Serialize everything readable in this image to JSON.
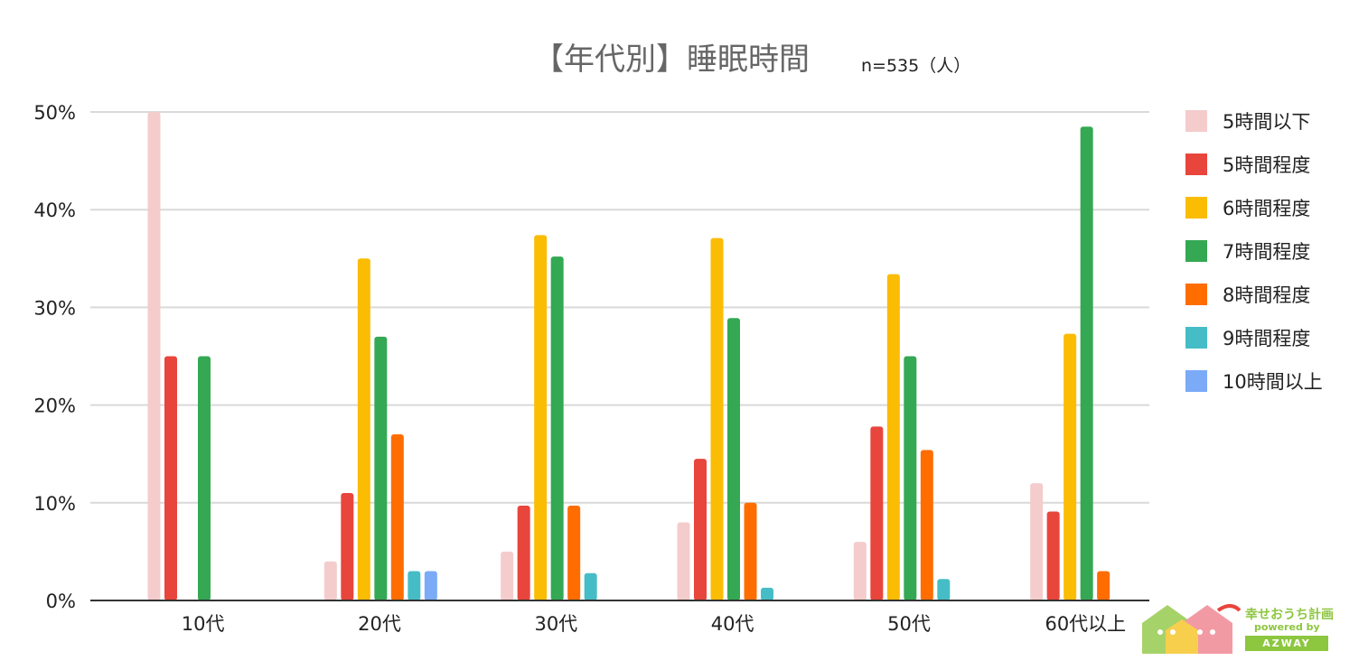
{
  "title": "【年代別】睡眠時間",
  "subtitle": "n=535（人）",
  "logo": {
    "title": "幸せおうち計画",
    "sub": "powered by",
    "brand": "AZWAY"
  },
  "chart_data": {
    "type": "bar",
    "title": "【年代別】睡眠時間",
    "subtitle": "n=535（人）",
    "categories": [
      "10代",
      "20代",
      "30代",
      "40代",
      "50代",
      "60代以上"
    ],
    "ylim": [
      0,
      50
    ],
    "yticks": [
      0,
      10,
      20,
      30,
      40,
      50
    ],
    "ytick_labels": [
      "0%",
      "10%",
      "20%",
      "30%",
      "40%",
      "50%"
    ],
    "grid": true,
    "legend_position": "right",
    "series": [
      {
        "name": "5時間以下",
        "color": "#f4cccc",
        "values": [
          50,
          4,
          5,
          8,
          6,
          12
        ]
      },
      {
        "name": "5時間程度",
        "color": "#e8453c",
        "values": [
          25,
          11,
          9.7,
          14.5,
          17.8,
          9.1
        ]
      },
      {
        "name": "6時間程度",
        "color": "#fbbc04",
        "values": [
          0,
          35,
          37.4,
          37.1,
          33.4,
          27.3
        ]
      },
      {
        "name": "7時間程度",
        "color": "#34a853",
        "values": [
          25,
          27,
          35.2,
          28.9,
          25,
          48.5
        ]
      },
      {
        "name": "8時間程度",
        "color": "#ff6d01",
        "values": [
          0,
          17,
          9.7,
          10,
          15.4,
          3
        ]
      },
      {
        "name": "9時間程度",
        "color": "#46bdc6",
        "values": [
          0,
          3,
          2.8,
          1.3,
          2.2,
          0
        ]
      },
      {
        "name": "10時間以上",
        "color": "#7baaf7",
        "values": [
          0,
          3,
          0,
          0,
          0,
          0
        ]
      }
    ]
  }
}
